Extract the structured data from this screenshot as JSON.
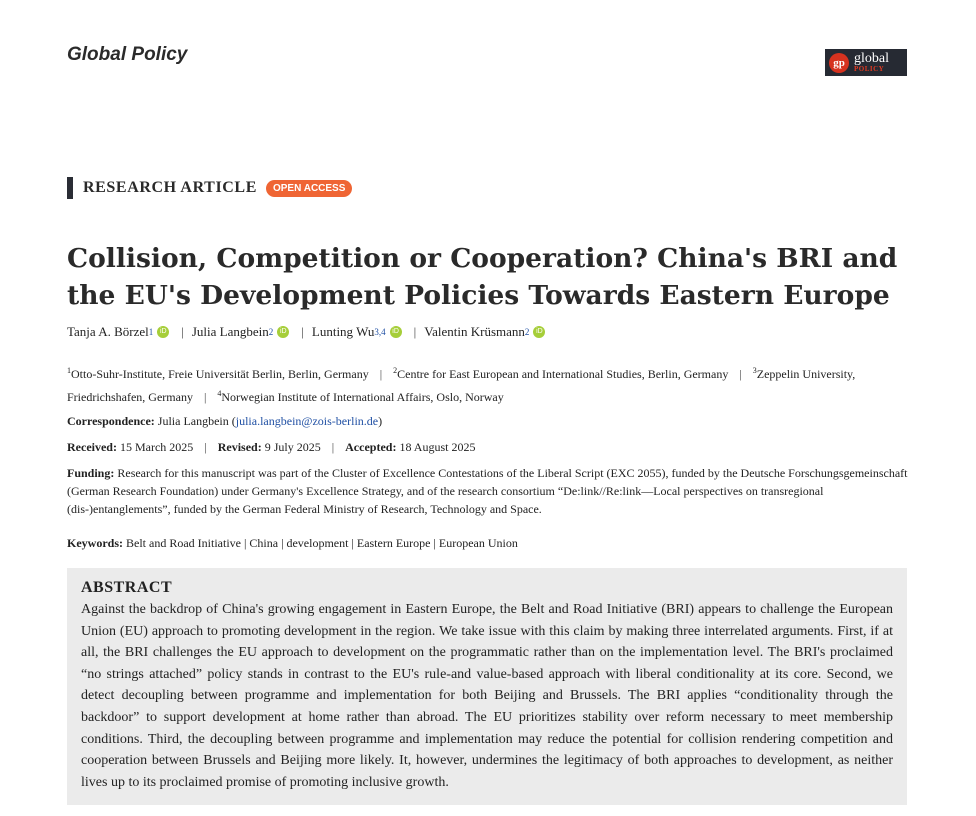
{
  "journal": "Global Policy",
  "logo": {
    "mark": "gp",
    "word": "global",
    "sub": "POLICY"
  },
  "article_type": "RESEARCH ARTICLE",
  "badge": "OPEN ACCESS",
  "title": "Collision, Competition or Cooperation? China's BRI and the EU's Development Policies Towards Eastern Europe",
  "authors": [
    {
      "name": "Tanja A. Börzel",
      "aff": "1"
    },
    {
      "name": "Julia Langbein",
      "aff": "2"
    },
    {
      "name": "Lunting Wu",
      "aff": "3,4"
    },
    {
      "name": "Valentin Krüsmann",
      "aff": "2"
    }
  ],
  "orcid_label": "iD",
  "separator": "|",
  "affiliations": [
    {
      "n": "1",
      "text": "Otto-Suhr-Institute, Freie Universität Berlin, Berlin, Germany"
    },
    {
      "n": "2",
      "text": "Centre for East European and International Studies, Berlin, Germany"
    },
    {
      "n": "3",
      "text": "Zeppelin University, Friedrichshafen, Germany"
    },
    {
      "n": "4",
      "text": "Norwegian Institute of International Affairs, Oslo, Norway"
    }
  ],
  "correspondence": {
    "label": "Correspondence:",
    "name": "Julia Langbein",
    "email": "julia.langbein@zois-berlin.de"
  },
  "dates": {
    "received_label": "Received:",
    "received": "15 March 2025",
    "revised_label": "Revised:",
    "revised": "9 July 2025",
    "accepted_label": "Accepted:",
    "accepted": "18 August 2025"
  },
  "funding": {
    "label": "Funding:",
    "text": "Research for this manuscript was part of the Cluster of Excellence Contestations of the Liberal Script (EXC 2055), funded by the Deutsche Forschungsgemeinschaft (German Research Foundation) under Germany's Excellence Strategy, and of the research consortium “De:link//Re:link—Local perspectives on transregional (dis-)entanglements”, funded by the German Federal Ministry of Research, Technology and Space."
  },
  "keywords": {
    "label": "Keywords:",
    "items": [
      "Belt and Road Initiative",
      "China",
      "development",
      "Eastern Europe",
      "European Union"
    ]
  },
  "abstract": {
    "heading": "ABSTRACT",
    "text": "Against the backdrop of China's growing engagement in Eastern Europe, the Belt and Road Initiative (BRI) appears to challenge the European Union (EU) approach to promoting development in the region. We take issue with this claim by making three interrelated arguments. First, if at all, the BRI challenges the EU approach to development on the programmatic rather than on the implementation level. The BRI's proclaimed “no strings attached” policy stands in contrast to the EU's rule-and value-based approach with liberal conditionality at its core. Second, we detect decoupling between programme and implementation for both Beijing and Brussels. The BRI applies “conditionality through the backdoor” to support development at home rather than abroad. The EU prioritizes stability over reform necessary to meet membership conditions. Third, the decoupling between programme and implementation may reduce the potential for collision rendering competition and cooperation between Brussels and Beijing more likely. It, however, undermines the legitimacy of both approaches to development, as neither lives up to its proclaimed promise of promoting inclusive growth."
  }
}
